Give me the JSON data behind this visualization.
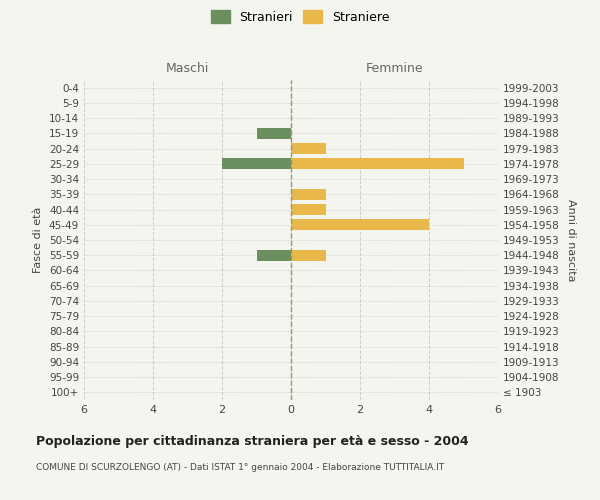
{
  "age_groups": [
    "100+",
    "95-99",
    "90-94",
    "85-89",
    "80-84",
    "75-79",
    "70-74",
    "65-69",
    "60-64",
    "55-59",
    "50-54",
    "45-49",
    "40-44",
    "35-39",
    "30-34",
    "25-29",
    "20-24",
    "15-19",
    "10-14",
    "5-9",
    "0-4"
  ],
  "birth_years": [
    "≤ 1903",
    "1904-1908",
    "1909-1913",
    "1914-1918",
    "1919-1923",
    "1924-1928",
    "1929-1933",
    "1934-1938",
    "1939-1943",
    "1944-1948",
    "1949-1953",
    "1954-1958",
    "1959-1963",
    "1964-1968",
    "1969-1973",
    "1974-1978",
    "1979-1983",
    "1984-1988",
    "1989-1993",
    "1994-1998",
    "1999-2003"
  ],
  "maschi": [
    0,
    0,
    0,
    0,
    0,
    0,
    0,
    0,
    0,
    1,
    0,
    0,
    0,
    0,
    0,
    2,
    0,
    1,
    0,
    0,
    0
  ],
  "femmine": [
    0,
    0,
    0,
    0,
    0,
    0,
    0,
    0,
    0,
    1,
    0,
    4,
    1,
    1,
    0,
    5,
    1,
    0,
    0,
    0,
    0
  ],
  "male_color": "#6b8f5e",
  "female_color": "#e8b84b",
  "title": "Popolazione per cittadinanza straniera per età e sesso - 2004",
  "subtitle": "COMUNE DI SCURZOLENGO (AT) - Dati ISTAT 1° gennaio 2004 - Elaborazione TUTTITALIA.IT",
  "ylabel_left": "Fasce di età",
  "ylabel_right": "Anni di nascita",
  "xlabel_maschi": "Maschi",
  "xlabel_femmine": "Femmine",
  "legend_male": "Stranieri",
  "legend_female": "Straniere",
  "xlim": 6,
  "background_color": "#f5f5f0",
  "grid_color": "#cccccc",
  "bar_height": 0.7
}
